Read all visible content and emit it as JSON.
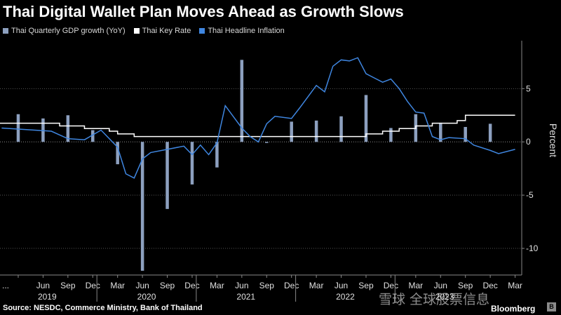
{
  "title": "Thai Digital Wallet Plan Moves Ahead as Growth Slows",
  "source": "Source: NESDC, Commerce Ministry, Bank of Thailand",
  "brand": "Bloomberg",
  "watermark": "雪球 全球股票信息",
  "colors": {
    "gdp": "#8da0bf",
    "rate": "#ffffff",
    "inflation": "#3f86e0",
    "grid": "#555555"
  },
  "legend": [
    {
      "label": "Thai Quarterly GDP growth (YoY)",
      "color": "#8da0bf"
    },
    {
      "label": "Thai Key Rate",
      "color": "#ffffff"
    },
    {
      "label": "Thai Headline Inflation",
      "color": "#3f86e0"
    }
  ],
  "chart_data": {
    "type": "bar+line",
    "ylabel": "Percent",
    "ylim": [
      -12.5,
      9.5
    ],
    "yticks": [
      5,
      0,
      -5,
      -10
    ],
    "x_tick_labels": [
      "...",
      "Jun",
      "Sep",
      "Dec",
      "Mar",
      "Jun",
      "Sep",
      "Dec",
      "Mar",
      "Jun",
      "Sep",
      "Dec",
      "Mar",
      "Jun",
      "Sep",
      "Dec",
      "Mar",
      "Jun",
      "Sep",
      "Dec",
      "Mar"
    ],
    "year_labels": [
      "2019",
      "2020",
      "2021",
      "2022",
      "2023"
    ],
    "gdp": {
      "name": "Thai Quarterly GDP growth (YoY)",
      "x": [
        "2019-03",
        "2019-06",
        "2019-09",
        "2019-12",
        "2020-03",
        "2020-06",
        "2020-09",
        "2020-12",
        "2021-03",
        "2021-06",
        "2021-09",
        "2021-12",
        "2022-03",
        "2022-06",
        "2022-09",
        "2022-12",
        "2023-03",
        "2023-06",
        "2023-09",
        "2023-12"
      ],
      "values": [
        2.6,
        2.2,
        2.5,
        1.1,
        -2.1,
        -12.1,
        -6.3,
        -4.0,
        -2.4,
        7.7,
        -0.1,
        1.9,
        2.0,
        2.4,
        4.4,
        1.3,
        2.6,
        1.8,
        1.4,
        1.7
      ]
    },
    "key_rate": {
      "name": "Thai Key Rate",
      "x": [
        "2019-01",
        "2019-08",
        "2019-11",
        "2020-02",
        "2020-03",
        "2020-05",
        "2022-08",
        "2022-09",
        "2022-11",
        "2023-01",
        "2023-03",
        "2023-05",
        "2023-08",
        "2023-09",
        "2024-03"
      ],
      "values": [
        1.75,
        1.5,
        1.25,
        1.0,
        0.75,
        0.5,
        0.5,
        0.75,
        1.0,
        1.25,
        1.5,
        1.75,
        2.0,
        2.5,
        2.5
      ]
    },
    "inflation": {
      "name": "Thai Headline Inflation",
      "x": [
        "2019-01",
        "2019-03",
        "2019-05",
        "2019-07",
        "2019-09",
        "2019-11",
        "2020-01",
        "2020-03",
        "2020-04",
        "2020-05",
        "2020-06",
        "2020-07",
        "2020-09",
        "2020-11",
        "2020-12",
        "2021-01",
        "2021-02",
        "2021-03",
        "2021-04",
        "2021-06",
        "2021-07",
        "2021-08",
        "2021-09",
        "2021-10",
        "2021-12",
        "2022-01",
        "2022-03",
        "2022-04",
        "2022-05",
        "2022-06",
        "2022-07",
        "2022-08",
        "2022-09",
        "2022-10",
        "2022-11",
        "2022-12",
        "2023-01",
        "2023-02",
        "2023-03",
        "2023-04",
        "2023-05",
        "2023-06",
        "2023-07",
        "2023-09",
        "2023-10",
        "2023-12",
        "2024-01",
        "2024-03"
      ],
      "values": [
        1.3,
        1.2,
        1.1,
        1.0,
        0.3,
        0.2,
        1.1,
        -0.5,
        -3.0,
        -3.4,
        -1.6,
        -1.0,
        -0.7,
        -0.4,
        -1.2,
        -0.3,
        -1.2,
        -0.1,
        3.4,
        1.3,
        0.5,
        0.0,
        1.7,
        2.4,
        2.2,
        3.2,
        5.3,
        4.7,
        7.1,
        7.7,
        7.6,
        7.9,
        6.4,
        6.0,
        5.6,
        5.9,
        5.0,
        3.8,
        2.8,
        2.7,
        0.5,
        0.2,
        0.4,
        0.3,
        -0.3,
        -0.8,
        -1.1,
        -0.7
      ]
    }
  }
}
